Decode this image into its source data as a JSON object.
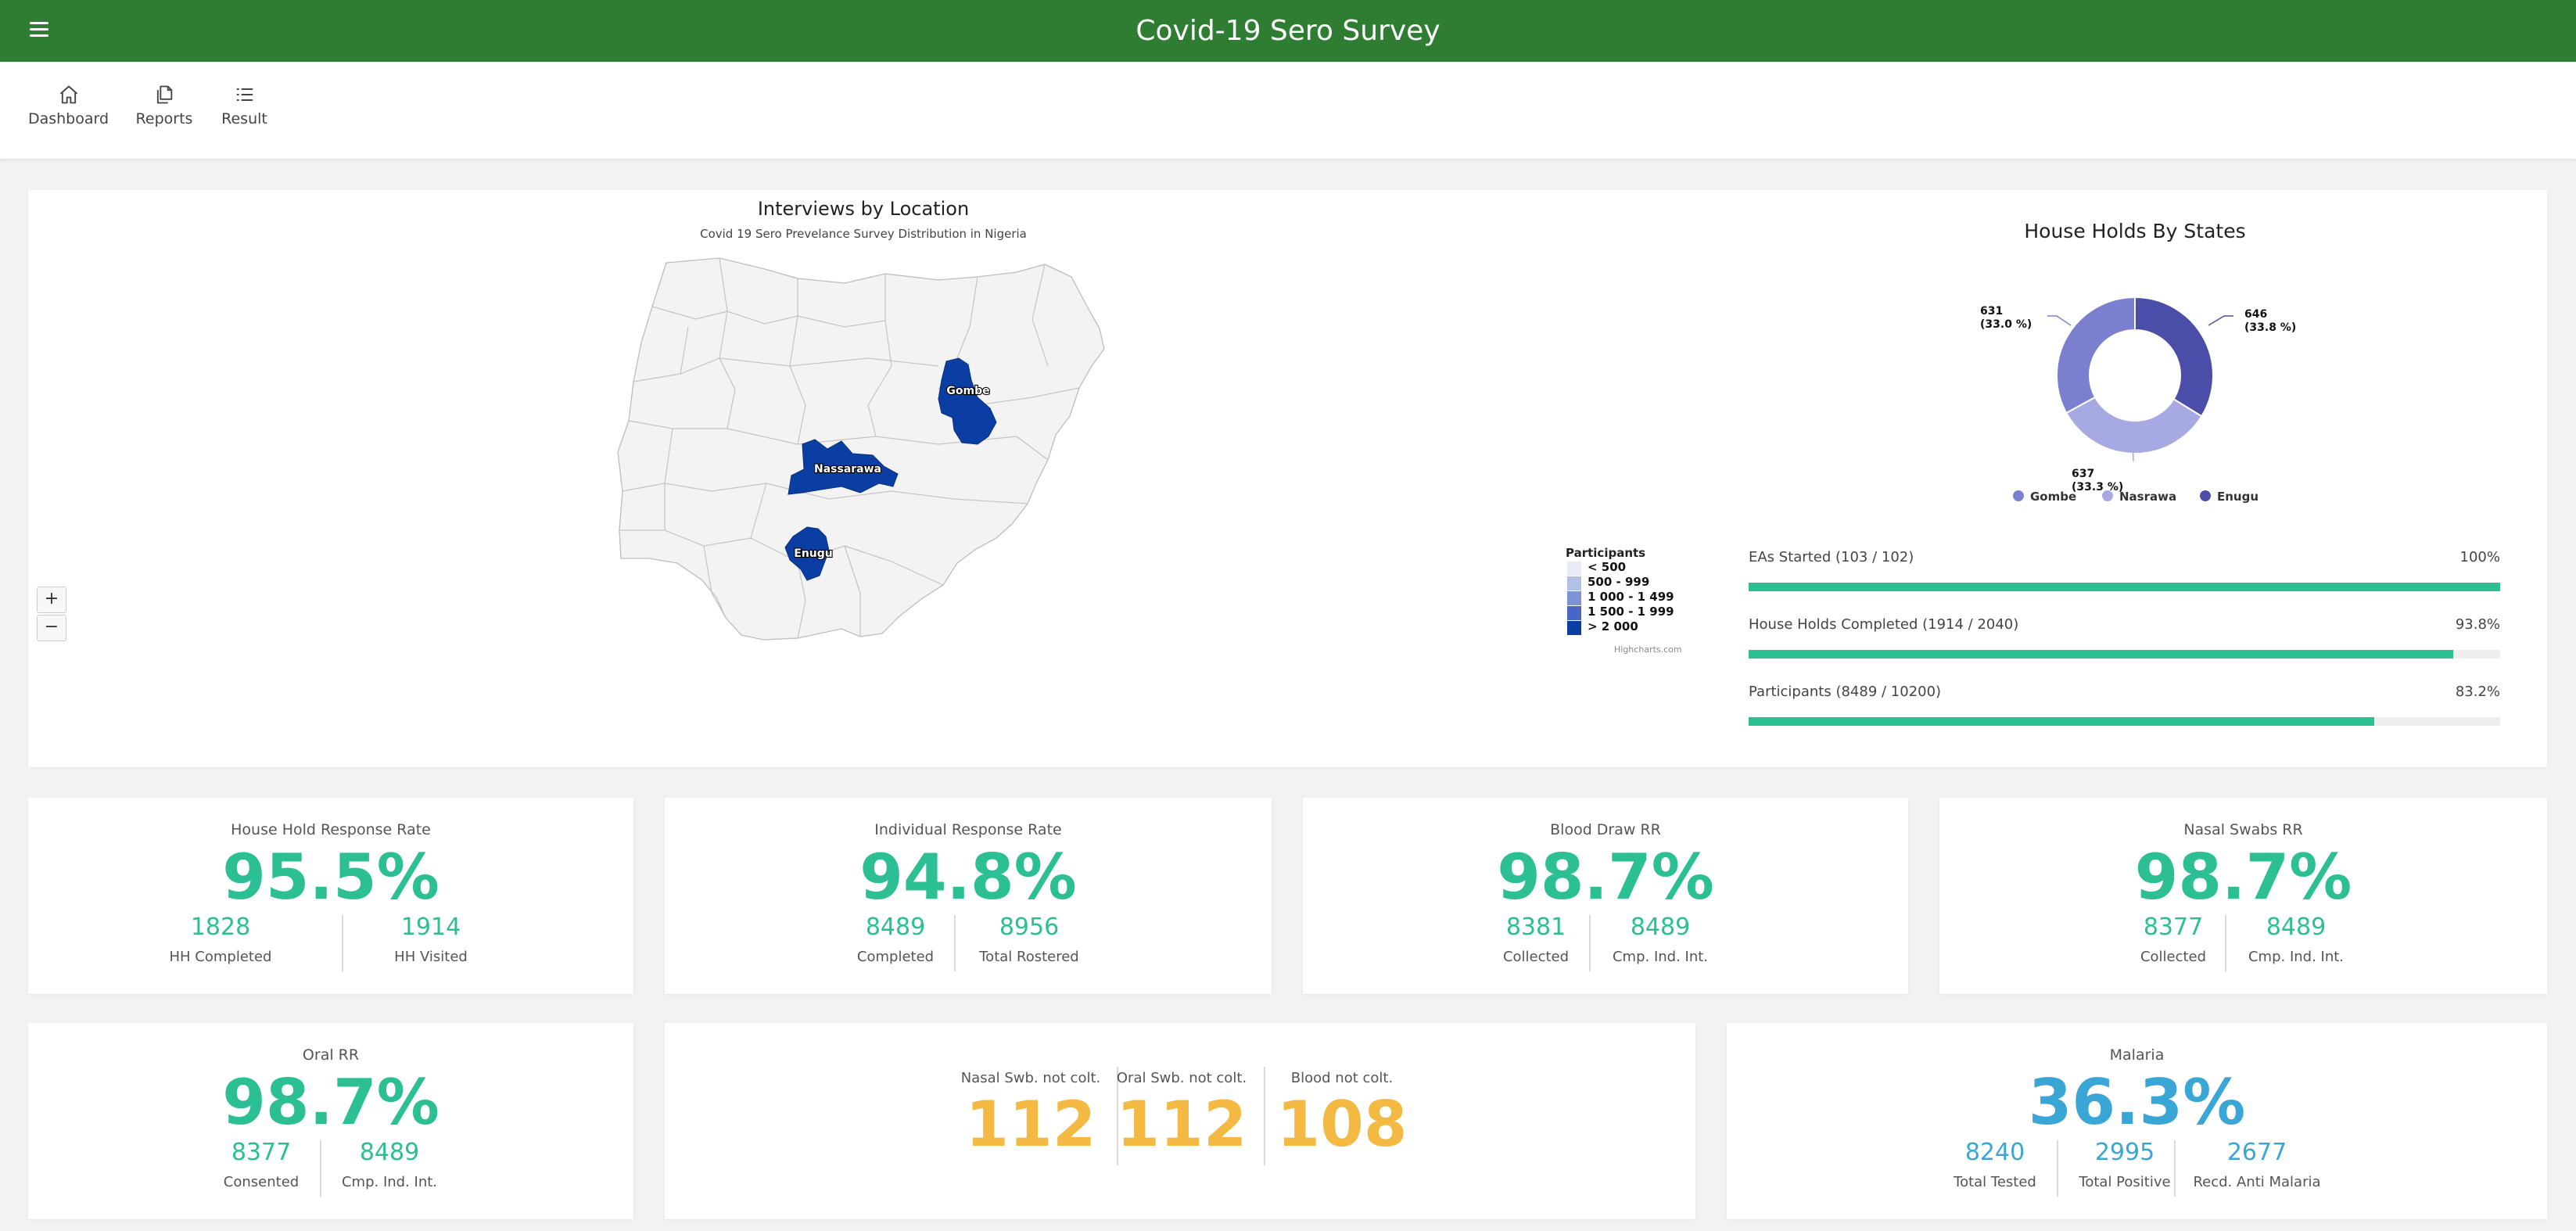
{
  "app": {
    "title": "Covid-19 Sero Survey"
  },
  "nav": {
    "dashboard": "Dashboard",
    "reports": "Reports",
    "result": "Result"
  },
  "map": {
    "title": "Interviews by Location",
    "subtitle": "Covid 19 Sero Prevelance Survey Distribution in Nigeria",
    "zoom_in": "+",
    "zoom_out": "−",
    "states": [
      {
        "name": "Gombe",
        "color": "#0a3ea3"
      },
      {
        "name": "Nassarawa",
        "color": "#0a3ea3"
      },
      {
        "name": "Enugu",
        "color": "#0a3ea3"
      }
    ],
    "legend": {
      "title": "Participants",
      "items": [
        {
          "label": "< 500",
          "color": "#e6ebf5"
        },
        {
          "label": "500 - 999",
          "color": "#b3c0e6"
        },
        {
          "label": "1 000 - 1 499",
          "color": "#7d93d6"
        },
        {
          "label": "1 500 - 1 999",
          "color": "#4a66c4"
        },
        {
          "label": "> 2 000",
          "color": "#0a3ea3"
        }
      ]
    },
    "credits": "Highcharts.com"
  },
  "households": {
    "title": "House Holds By States",
    "slices": [
      {
        "name": "Enugu",
        "value": 646,
        "percent": "(33.8 %)",
        "color": "#4b4ea8"
      },
      {
        "name": "Nasrawa",
        "value": 637,
        "percent": "(33.3 %)",
        "color": "#a7a9e3"
      },
      {
        "name": "Gombe",
        "value": 631,
        "percent": "(33.0 %)",
        "color": "#7b7fd0"
      }
    ],
    "legend": [
      "Gombe",
      "Nasrawa",
      "Enugu"
    ]
  },
  "progress": [
    {
      "label": "EAs Started (103 / 102)",
      "percent_text": "100%",
      "fraction": 1.0
    },
    {
      "label": "House Holds Completed (1914 / 2040)",
      "percent_text": "93.8%",
      "fraction": 0.938
    },
    {
      "label": "Participants (8489 / 10200)",
      "percent_text": "83.2%",
      "fraction": 0.832
    }
  ],
  "stats": {
    "hh_response": {
      "title": "House Hold Response Rate",
      "value": "95.5%",
      "left_num": "1828",
      "left_label": "HH Completed",
      "right_num": "1914",
      "right_label": "HH Visited"
    },
    "individual_response": {
      "title": "Individual Response Rate",
      "value": "94.8%",
      "left_num": "8489",
      "left_label": "Completed",
      "right_num": "8956",
      "right_label": "Total Rostered"
    },
    "blood_draw": {
      "title": "Blood Draw RR",
      "value": "98.7%",
      "left_num": "8381",
      "left_label": "Collected",
      "right_num": "8489",
      "right_label": "Cmp. Ind. Int."
    },
    "nasal_swabs": {
      "title": "Nasal Swabs RR",
      "value": "98.7%",
      "left_num": "8377",
      "left_label": "Collected",
      "right_num": "8489",
      "right_label": "Cmp. Ind. Int."
    },
    "oral": {
      "title": "Oral RR",
      "value": "98.7%",
      "left_num": "8377",
      "left_label": "Consented",
      "right_num": "8489",
      "right_label": "Cmp. Ind. Int."
    },
    "not_collected": [
      {
        "label": "Nasal Swb. not colt.",
        "value": "112"
      },
      {
        "label": "Oral Swb. not colt.",
        "value": "112"
      },
      {
        "label": "Blood not colt.",
        "value": "108"
      }
    ],
    "malaria": {
      "title": "Malaria",
      "value": "36.3%",
      "items": [
        {
          "num": "8240",
          "label": "Total Tested"
        },
        {
          "num": "2995",
          "label": "Total Positive"
        },
        {
          "num": "2677",
          "label": "Recd. Anti Malaria"
        }
      ]
    }
  },
  "colors": {
    "header_green": "#2e7d32",
    "accent_green": "#2bbf93",
    "accent_orange": "#f4b942",
    "accent_blue": "#3aa6d6",
    "map_highlight": "#0a3ea3"
  }
}
